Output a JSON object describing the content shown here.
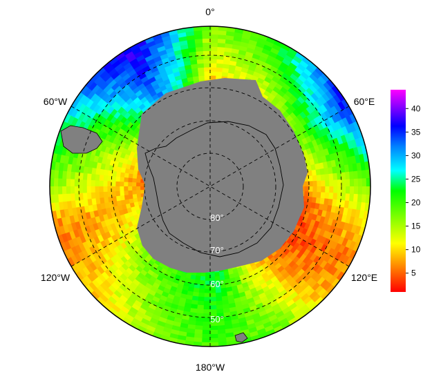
{
  "map": {
    "projection": "south-polar-stereographic",
    "data_description": "",
    "longitude_labels": {
      "top": "0°",
      "upper_right": "60°E",
      "lower_right": "120°E",
      "bottom": "180°W",
      "lower_left": "120°W",
      "upper_left": "60°W"
    },
    "latitude_labels": [
      "80°",
      "70°",
      "60°",
      "50°"
    ],
    "land_color": "#808080",
    "graticule": "dashed"
  },
  "colorbar": {
    "ticks": [
      "5",
      "10",
      "15",
      "20",
      "25",
      "30",
      "35",
      "40"
    ],
    "range": [
      1,
      44
    ],
    "colors": [
      "#ff0000",
      "#ff8000",
      "#ffff00",
      "#80ff00",
      "#00ff00",
      "#00ffff",
      "#0080ff",
      "#0000ff",
      "#8000ff",
      "#ff00ff"
    ]
  }
}
